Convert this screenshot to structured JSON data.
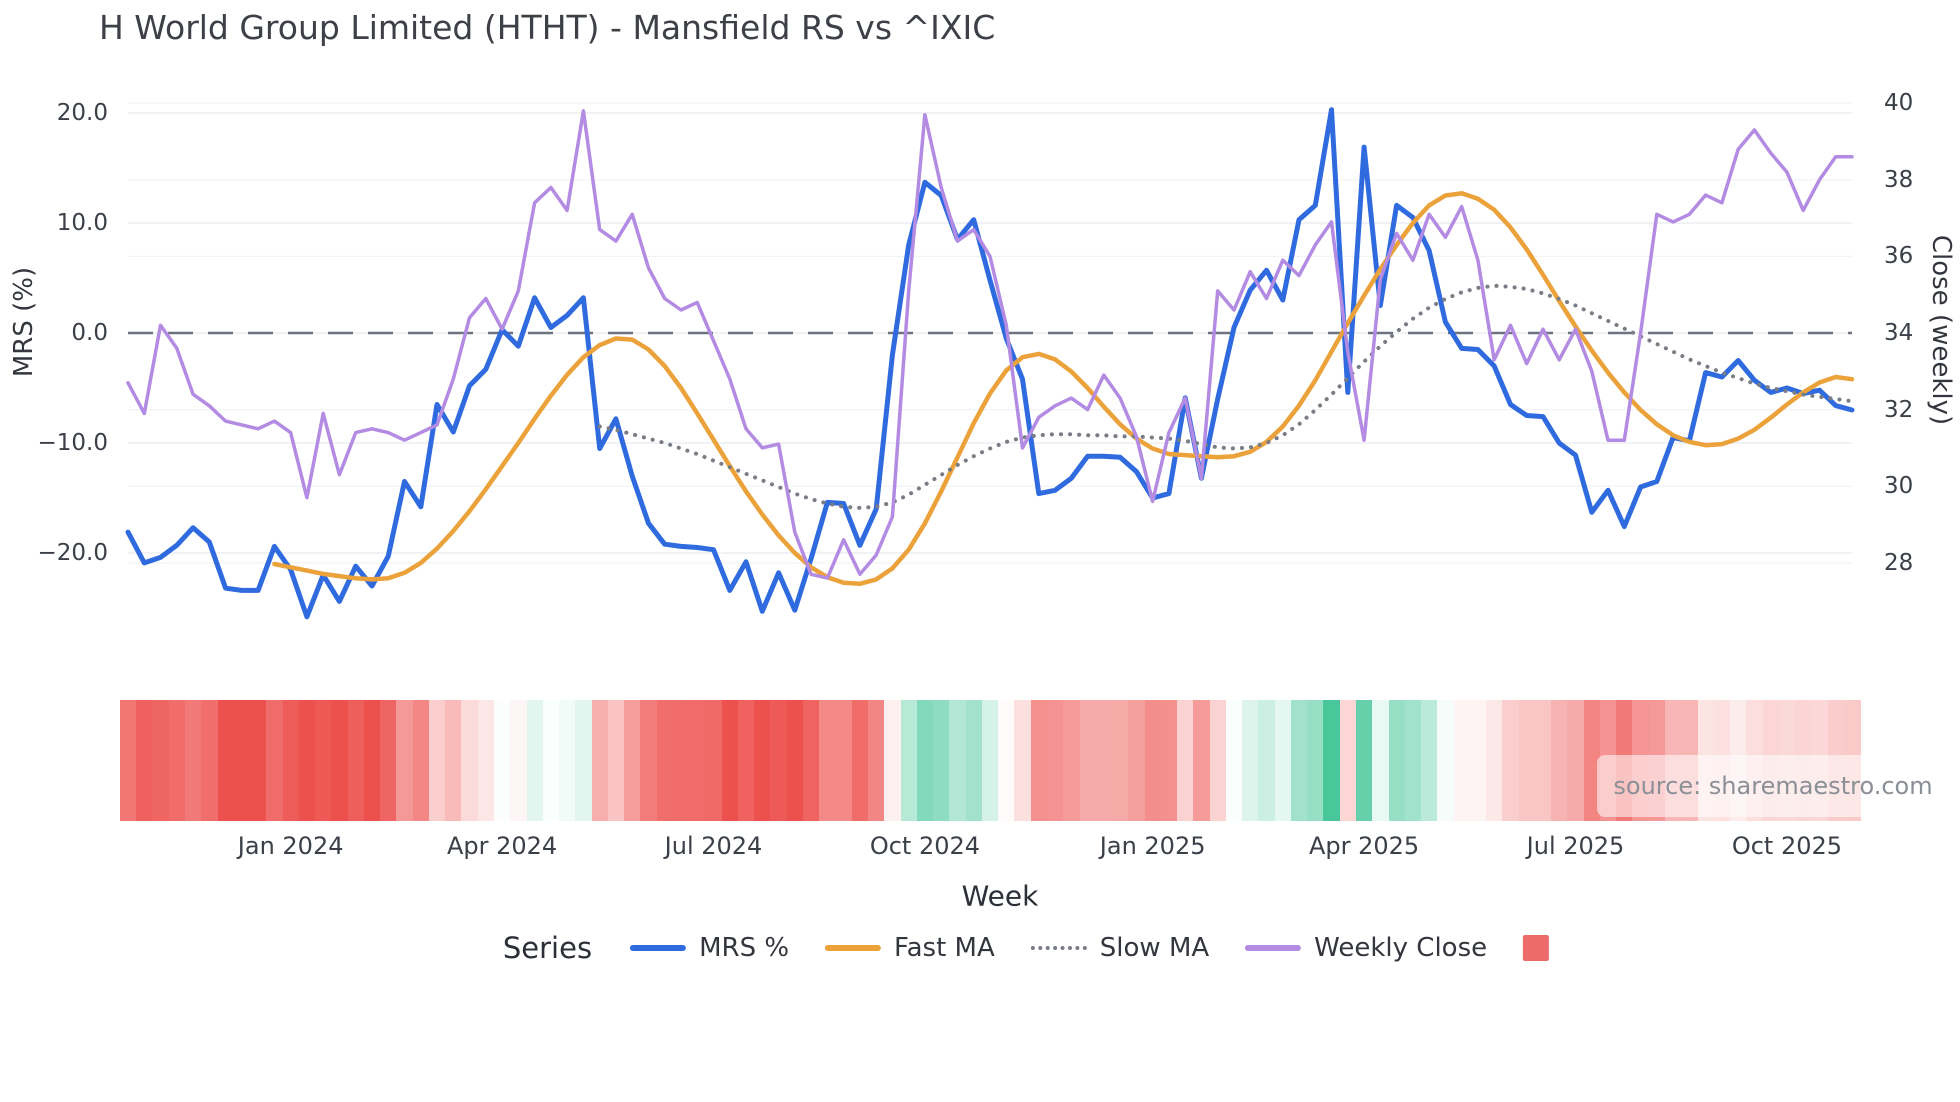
{
  "title": "H World Group Limited (HTHT) - Mansfield RS vs ^IXIC",
  "source_text": "source: sharemaestro.com",
  "xlabel": "Week",
  "legend": {
    "title": "Series",
    "items": [
      {
        "label": "MRS %",
        "swatch": "line",
        "color": "#2f6bdf"
      },
      {
        "label": "Fast MA",
        "swatch": "line",
        "color": "#eba23a"
      },
      {
        "label": "Slow MA",
        "swatch": "dotted",
        "color": "#787d86"
      },
      {
        "label": "Weekly Close",
        "swatch": "line",
        "color": "#b38be2"
      },
      {
        "label": "",
        "swatch": "square",
        "color": "#ee6b6b"
      }
    ]
  },
  "chart_data": {
    "type": "line",
    "title": "H World Group Limited (HTHT) - Mansfield RS vs ^IXIC",
    "xlabel": "Week",
    "weeks": 107,
    "x_ticks": [
      {
        "label": "Jan 2024",
        "week": 10
      },
      {
        "label": "Apr 2024",
        "week": 23
      },
      {
        "label": "Jul 2024",
        "week": 36
      },
      {
        "label": "Oct 2024",
        "week": 49
      },
      {
        "label": "Jan 2025",
        "week": 63
      },
      {
        "label": "Apr 2025",
        "week": 76
      },
      {
        "label": "Jul 2025",
        "week": 89
      },
      {
        "label": "Oct 2025",
        "week": 102
      }
    ],
    "left_axis": {
      "label": "MRS (%)",
      "ticks": [
        20,
        10,
        0,
        -10,
        -20
      ],
      "tick_labels": [
        "20.0",
        "10.0",
        "0.0",
        "−10.0",
        "−20.0"
      ]
    },
    "right_axis": {
      "label": "Close (weekly)",
      "ticks": [
        40,
        38,
        36,
        34,
        32,
        30,
        28
      ],
      "tick_labels": [
        "40",
        "38",
        "36",
        "34",
        "32",
        "30",
        "28"
      ]
    },
    "zero_line": {
      "mrs": 0,
      "close_equivalent": 34
    },
    "grid": true,
    "legend_position": "bottom",
    "series": [
      {
        "name": "MRS %",
        "axis": "left",
        "color": "#2f6bdf",
        "style": "solid",
        "width": 5,
        "values": [
          -18.1,
          -20.9,
          -20.4,
          -19.3,
          -17.7,
          -19.0,
          -23.2,
          -23.4,
          -23.4,
          -19.4,
          -21.5,
          -25.8,
          -22.0,
          -24.4,
          -21.2,
          -23.0,
          -20.3,
          -13.5,
          -15.8,
          -6.5,
          -9.0,
          -4.8,
          -3.3,
          0.3,
          -1.2,
          3.2,
          0.5,
          1.6,
          3.2,
          -10.5,
          -7.8,
          -13.0,
          -17.3,
          -19.2,
          -19.4,
          -19.5,
          -19.7,
          -23.4,
          -20.8,
          -25.3,
          -21.8,
          -25.2,
          -20.5,
          -15.4,
          -15.5,
          -19.3,
          -16.0,
          -2.0,
          8.0,
          13.7,
          12.5,
          8.5,
          10.3,
          4.8,
          -0.5,
          -4.2,
          -14.6,
          -14.3,
          -13.2,
          -11.2,
          -11.2,
          -11.3,
          -12.6,
          -15.0,
          -14.6,
          -5.9,
          -13.2,
          -6.0,
          0.5,
          3.9,
          5.7,
          3.0,
          10.3,
          11.6,
          20.3,
          -5.4,
          16.9,
          2.5,
          11.6,
          10.5,
          7.5,
          1.0,
          -1.4,
          -1.5,
          -3.0,
          -6.5,
          -7.5,
          -7.6,
          -10.0,
          -11.1,
          -16.3,
          -14.3,
          -17.6,
          -14.0,
          -13.5,
          -9.5,
          -9.8,
          -3.6,
          -4.0,
          -2.5,
          -4.3,
          -5.4,
          -5.0,
          -5.5,
          -5.2,
          -6.6,
          -7.0
        ]
      },
      {
        "name": "Fast MA",
        "axis": "left",
        "color": "#eba23a",
        "style": "solid",
        "width": 4.5,
        "values": [
          null,
          null,
          null,
          null,
          null,
          null,
          null,
          null,
          null,
          -21.0,
          -21.3,
          -21.6,
          -21.9,
          -22.1,
          -22.3,
          -22.4,
          -22.3,
          -21.8,
          -20.9,
          -19.6,
          -18.0,
          -16.2,
          -14.2,
          -12.1,
          -10.0,
          -7.8,
          -5.7,
          -3.8,
          -2.2,
          -1.1,
          -0.5,
          -0.6,
          -1.5,
          -3.0,
          -5.0,
          -7.3,
          -9.7,
          -12.1,
          -14.4,
          -16.5,
          -18.4,
          -20.0,
          -21.3,
          -22.2,
          -22.7,
          -22.8,
          -22.4,
          -21.4,
          -19.7,
          -17.3,
          -14.4,
          -11.3,
          -8.2,
          -5.5,
          -3.4,
          -2.2,
          -1.9,
          -2.4,
          -3.5,
          -5.0,
          -6.7,
          -8.3,
          -9.6,
          -10.5,
          -11.0,
          -11.1,
          -11.2,
          -11.3,
          -11.2,
          -10.8,
          -9.9,
          -8.5,
          -6.6,
          -4.3,
          -1.7,
          0.9,
          3.4,
          5.8,
          8.0,
          10.0,
          11.6,
          12.5,
          12.7,
          12.2,
          11.2,
          9.6,
          7.6,
          5.3,
          2.9,
          0.6,
          -1.6,
          -3.6,
          -5.4,
          -7.0,
          -8.3,
          -9.3,
          -9.9,
          -10.2,
          -10.1,
          -9.6,
          -8.8,
          -7.7,
          -6.5,
          -5.4,
          -4.5,
          -4.0,
          -4.2
        ]
      },
      {
        "name": "Slow MA",
        "axis": "left",
        "color": "#787d86",
        "style": "dotted",
        "width": 4,
        "values": [
          null,
          null,
          null,
          null,
          null,
          null,
          null,
          null,
          null,
          null,
          null,
          null,
          null,
          null,
          null,
          null,
          null,
          null,
          null,
          null,
          null,
          null,
          null,
          null,
          null,
          null,
          null,
          null,
          null,
          -8.5,
          -8.8,
          -9.2,
          -9.6,
          -10.0,
          -10.5,
          -11.0,
          -11.6,
          -12.2,
          -12.8,
          -13.4,
          -14.0,
          -14.6,
          -15.1,
          -15.5,
          -15.8,
          -15.9,
          -15.8,
          -15.4,
          -14.7,
          -13.8,
          -12.9,
          -12.0,
          -11.2,
          -10.5,
          -9.9,
          -9.5,
          -9.3,
          -9.2,
          -9.2,
          -9.3,
          -9.3,
          -9.4,
          -9.4,
          -9.5,
          -9.6,
          -9.8,
          -10.1,
          -10.4,
          -10.5,
          -10.4,
          -10.0,
          -9.3,
          -8.3,
          -7.0,
          -5.6,
          -4.1,
          -2.6,
          -1.2,
          0.1,
          1.3,
          2.3,
          3.1,
          3.7,
          4.1,
          4.3,
          4.2,
          4.0,
          3.6,
          3.1,
          2.5,
          1.8,
          1.1,
          0.4,
          -0.3,
          -1.0,
          -1.7,
          -2.4,
          -3.0,
          -3.6,
          -4.1,
          -4.6,
          -5.0,
          -5.3,
          -5.6,
          -5.8,
          -6.0,
          -6.2
        ]
      },
      {
        "name": "Weekly Close",
        "axis": "right",
        "color": "#b38be2",
        "style": "solid",
        "width": 3.5,
        "values": [
          32.7,
          31.9,
          34.2,
          33.6,
          32.4,
          32.1,
          31.7,
          31.6,
          31.5,
          31.7,
          31.4,
          29.7,
          31.9,
          30.3,
          31.4,
          31.5,
          31.4,
          31.2,
          31.4,
          31.6,
          32.8,
          34.4,
          34.9,
          34.1,
          35.1,
          37.4,
          37.8,
          37.2,
          39.8,
          36.7,
          36.4,
          37.1,
          35.7,
          34.9,
          34.6,
          34.8,
          33.8,
          32.8,
          31.5,
          31.0,
          31.1,
          28.8,
          27.7,
          27.6,
          28.6,
          27.7,
          28.2,
          29.2,
          35.1,
          39.7,
          37.8,
          36.4,
          36.7,
          36.0,
          34.2,
          31.0,
          31.8,
          32.1,
          32.3,
          32.0,
          32.9,
          32.3,
          31.3,
          29.6,
          31.4,
          32.3,
          30.2,
          35.1,
          34.6,
          35.6,
          34.9,
          35.9,
          35.5,
          36.3,
          36.9,
          33.5,
          31.2,
          35.4,
          36.6,
          35.9,
          37.1,
          36.5,
          37.3,
          35.9,
          33.3,
          34.2,
          33.2,
          34.1,
          33.3,
          34.1,
          33.0,
          31.2,
          31.2,
          34.0,
          37.1,
          36.9,
          37.1,
          37.6,
          37.4,
          38.8,
          39.3,
          38.7,
          38.2,
          37.2,
          38.0,
          38.6,
          38.6
        ]
      }
    ],
    "heatmap": {
      "keyed_to": "MRS %",
      "negative_color": "#ed514e",
      "positive_color": "#2fbf8c",
      "neutral_color": "#ffffff"
    }
  }
}
